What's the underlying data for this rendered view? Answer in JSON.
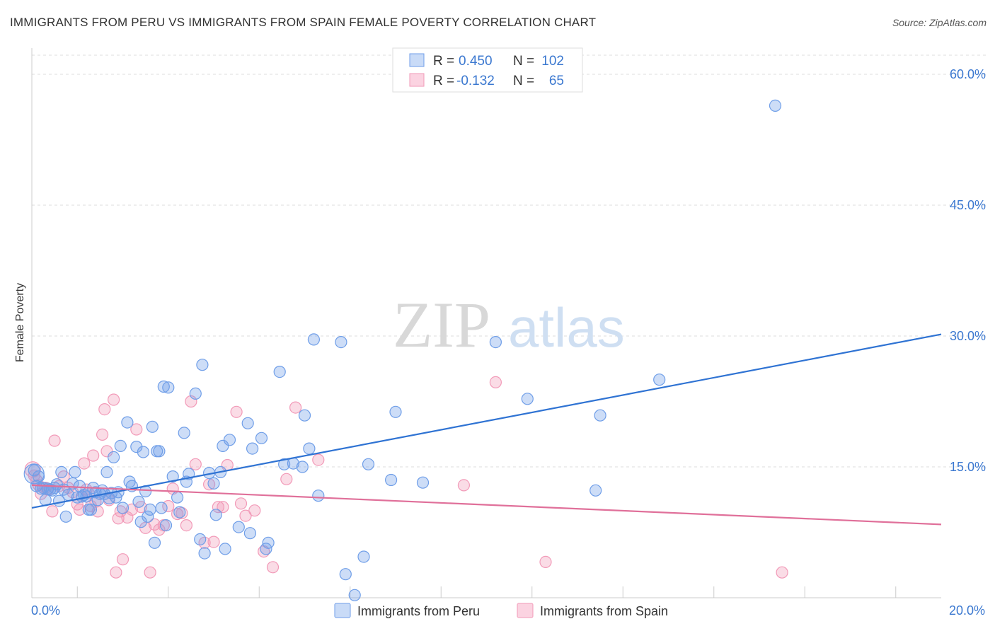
{
  "header": {
    "title": "IMMIGRANTS FROM PERU VS IMMIGRANTS FROM SPAIN FEMALE POVERTY CORRELATION CHART",
    "source": "Source: ZipAtlas.com"
  },
  "watermark": {
    "zip": "ZIP",
    "atlas": "atlas"
  },
  "colors": {
    "peru": "#6f9ee8",
    "peru_line": "#2f73d3",
    "spain": "#f29ab8",
    "spain_line": "#e0709a",
    "axis_text": "#3b78d0"
  },
  "chart_data": {
    "type": "scatter",
    "title": "IMMIGRANTS FROM PERU VS IMMIGRANTS FROM SPAIN FEMALE POVERTY CORRELATION CHART",
    "xlabel": "",
    "ylabel": "Female Poverty",
    "xlim": [
      0,
      20
    ],
    "ylim": [
      0,
      63
    ],
    "x_tick_labels": [
      "0.0%",
      "20.0%"
    ],
    "y_ticks": [
      15,
      30,
      45,
      60
    ],
    "y_tick_labels": [
      "15.0%",
      "30.0%",
      "45.0%",
      "60.0%"
    ],
    "legend_stats": [
      {
        "r_label": "R =",
        "r_value": "0.450",
        "n_label": "N =",
        "n_value": "102"
      },
      {
        "r_label": "R =",
        "r_value": "-0.132",
        "n_label": "N =",
        "n_value": "65"
      }
    ],
    "series": [
      {
        "name": "Immigrants from Peru",
        "trend": {
          "x": [
            0,
            20
          ],
          "y": [
            10.3,
            30.2
          ]
        },
        "points": [
          [
            0.05,
            14.6
          ],
          [
            0.1,
            12.8
          ],
          [
            0.15,
            13.9
          ],
          [
            0.2,
            12.5
          ],
          [
            0.25,
            12.6
          ],
          [
            0.3,
            11.2
          ],
          [
            0.35,
            12.5
          ],
          [
            0.4,
            12.4
          ],
          [
            0.45,
            12.3
          ],
          [
            0.5,
            12.6
          ],
          [
            0.55,
            13.0
          ],
          [
            0.6,
            11.1
          ],
          [
            0.65,
            14.4
          ],
          [
            0.7,
            12.4
          ],
          [
            0.75,
            9.3
          ],
          [
            0.8,
            11.8
          ],
          [
            0.9,
            13.1
          ],
          [
            0.95,
            14.4
          ],
          [
            1.0,
            11.5
          ],
          [
            1.05,
            12.8
          ],
          [
            1.1,
            11.6
          ],
          [
            1.15,
            11.8
          ],
          [
            1.2,
            11.6
          ],
          [
            1.25,
            10.1
          ],
          [
            1.3,
            10.1
          ],
          [
            1.35,
            12.6
          ],
          [
            1.4,
            12.1
          ],
          [
            1.45,
            11.2
          ],
          [
            1.5,
            11.9
          ],
          [
            1.55,
            12.3
          ],
          [
            1.6,
            11.9
          ],
          [
            1.65,
            14.4
          ],
          [
            1.7,
            11.4
          ],
          [
            1.75,
            12.0
          ],
          [
            1.8,
            16.1
          ],
          [
            1.85,
            11.5
          ],
          [
            1.9,
            12.1
          ],
          [
            1.95,
            17.4
          ],
          [
            2.0,
            10.3
          ],
          [
            2.1,
            20.1
          ],
          [
            2.15,
            13.3
          ],
          [
            2.2,
            12.8
          ],
          [
            2.3,
            17.3
          ],
          [
            2.35,
            11.0
          ],
          [
            2.4,
            8.7
          ],
          [
            2.45,
            16.7
          ],
          [
            2.5,
            12.2
          ],
          [
            2.55,
            9.3
          ],
          [
            2.6,
            10.1
          ],
          [
            2.65,
            19.6
          ],
          [
            2.7,
            6.3
          ],
          [
            2.75,
            16.8
          ],
          [
            2.8,
            16.8
          ],
          [
            2.85,
            10.3
          ],
          [
            2.9,
            24.2
          ],
          [
            2.95,
            8.3
          ],
          [
            3.0,
            24.1
          ],
          [
            3.1,
            13.9
          ],
          [
            3.2,
            11.5
          ],
          [
            3.25,
            9.8
          ],
          [
            3.35,
            18.9
          ],
          [
            3.4,
            13.3
          ],
          [
            3.45,
            14.2
          ],
          [
            3.6,
            23.4
          ],
          [
            3.7,
            6.7
          ],
          [
            3.75,
            26.7
          ],
          [
            3.8,
            5.1
          ],
          [
            3.9,
            14.3
          ],
          [
            4.0,
            13.1
          ],
          [
            4.05,
            9.5
          ],
          [
            4.15,
            14.4
          ],
          [
            4.2,
            17.4
          ],
          [
            4.25,
            5.6
          ],
          [
            4.35,
            18.1
          ],
          [
            4.55,
            8.1
          ],
          [
            4.75,
            20.0
          ],
          [
            4.8,
            7.4
          ],
          [
            4.85,
            17.1
          ],
          [
            5.05,
            18.3
          ],
          [
            5.15,
            5.6
          ],
          [
            5.2,
            6.3
          ],
          [
            5.45,
            25.9
          ],
          [
            5.55,
            15.3
          ],
          [
            5.75,
            15.4
          ],
          [
            5.95,
            15.0
          ],
          [
            6.0,
            20.9
          ],
          [
            6.1,
            17.1
          ],
          [
            6.2,
            29.6
          ],
          [
            6.3,
            11.7
          ],
          [
            6.8,
            29.3
          ],
          [
            6.9,
            2.7
          ],
          [
            7.1,
            0.3
          ],
          [
            7.3,
            4.7
          ],
          [
            7.4,
            15.3
          ],
          [
            7.9,
            13.5
          ],
          [
            8.0,
            21.3
          ],
          [
            8.6,
            13.2
          ],
          [
            10.2,
            29.3
          ],
          [
            10.9,
            22.8
          ],
          [
            12.4,
            12.3
          ],
          [
            12.5,
            20.9
          ],
          [
            13.8,
            25.0
          ],
          [
            16.35,
            56.4
          ]
        ]
      },
      {
        "name": "Immigrants from Spain",
        "trend": {
          "x": [
            0,
            20
          ],
          "y": [
            12.9,
            8.4
          ]
        },
        "points": [
          [
            0.05,
            14.0
          ],
          [
            0.15,
            12.9
          ],
          [
            0.2,
            11.9
          ],
          [
            0.3,
            12.6
          ],
          [
            0.35,
            12.4
          ],
          [
            0.45,
            9.9
          ],
          [
            0.5,
            18.0
          ],
          [
            0.6,
            12.8
          ],
          [
            0.7,
            13.9
          ],
          [
            0.8,
            12.6
          ],
          [
            0.9,
            12.1
          ],
          [
            1.0,
            10.7
          ],
          [
            1.05,
            10.1
          ],
          [
            1.15,
            15.4
          ],
          [
            1.2,
            12.4
          ],
          [
            1.25,
            12.0
          ],
          [
            1.3,
            10.5
          ],
          [
            1.35,
            16.3
          ],
          [
            1.4,
            11.0
          ],
          [
            1.45,
            9.9
          ],
          [
            1.55,
            18.7
          ],
          [
            1.6,
            21.6
          ],
          [
            1.65,
            16.8
          ],
          [
            1.7,
            11.2
          ],
          [
            1.8,
            22.7
          ],
          [
            1.85,
            2.9
          ],
          [
            1.9,
            9.1
          ],
          [
            1.95,
            9.9
          ],
          [
            2.0,
            4.4
          ],
          [
            2.1,
            9.2
          ],
          [
            2.2,
            10.1
          ],
          [
            2.3,
            19.3
          ],
          [
            2.4,
            10.4
          ],
          [
            2.5,
            8.0
          ],
          [
            2.6,
            2.9
          ],
          [
            2.7,
            8.4
          ],
          [
            2.8,
            7.8
          ],
          [
            2.9,
            8.3
          ],
          [
            3.0,
            10.5
          ],
          [
            3.1,
            12.5
          ],
          [
            3.2,
            9.6
          ],
          [
            3.3,
            9.7
          ],
          [
            3.4,
            8.3
          ],
          [
            3.5,
            22.5
          ],
          [
            3.6,
            15.3
          ],
          [
            3.8,
            6.3
          ],
          [
            3.9,
            13.0
          ],
          [
            4.0,
            6.4
          ],
          [
            4.1,
            10.4
          ],
          [
            4.2,
            10.4
          ],
          [
            4.3,
            15.2
          ],
          [
            4.5,
            21.3
          ],
          [
            4.6,
            10.8
          ],
          [
            4.7,
            9.4
          ],
          [
            4.9,
            10.0
          ],
          [
            5.1,
            5.3
          ],
          [
            5.3,
            3.5
          ],
          [
            5.6,
            13.6
          ],
          [
            5.8,
            21.8
          ],
          [
            6.3,
            15.8
          ],
          [
            9.5,
            12.9
          ],
          [
            10.2,
            24.7
          ],
          [
            11.3,
            4.1
          ],
          [
            16.5,
            2.9
          ],
          [
            0.1,
            13.5
          ]
        ]
      }
    ]
  },
  "legend": {
    "items": [
      "Immigrants from Peru",
      "Immigrants from Spain"
    ]
  }
}
